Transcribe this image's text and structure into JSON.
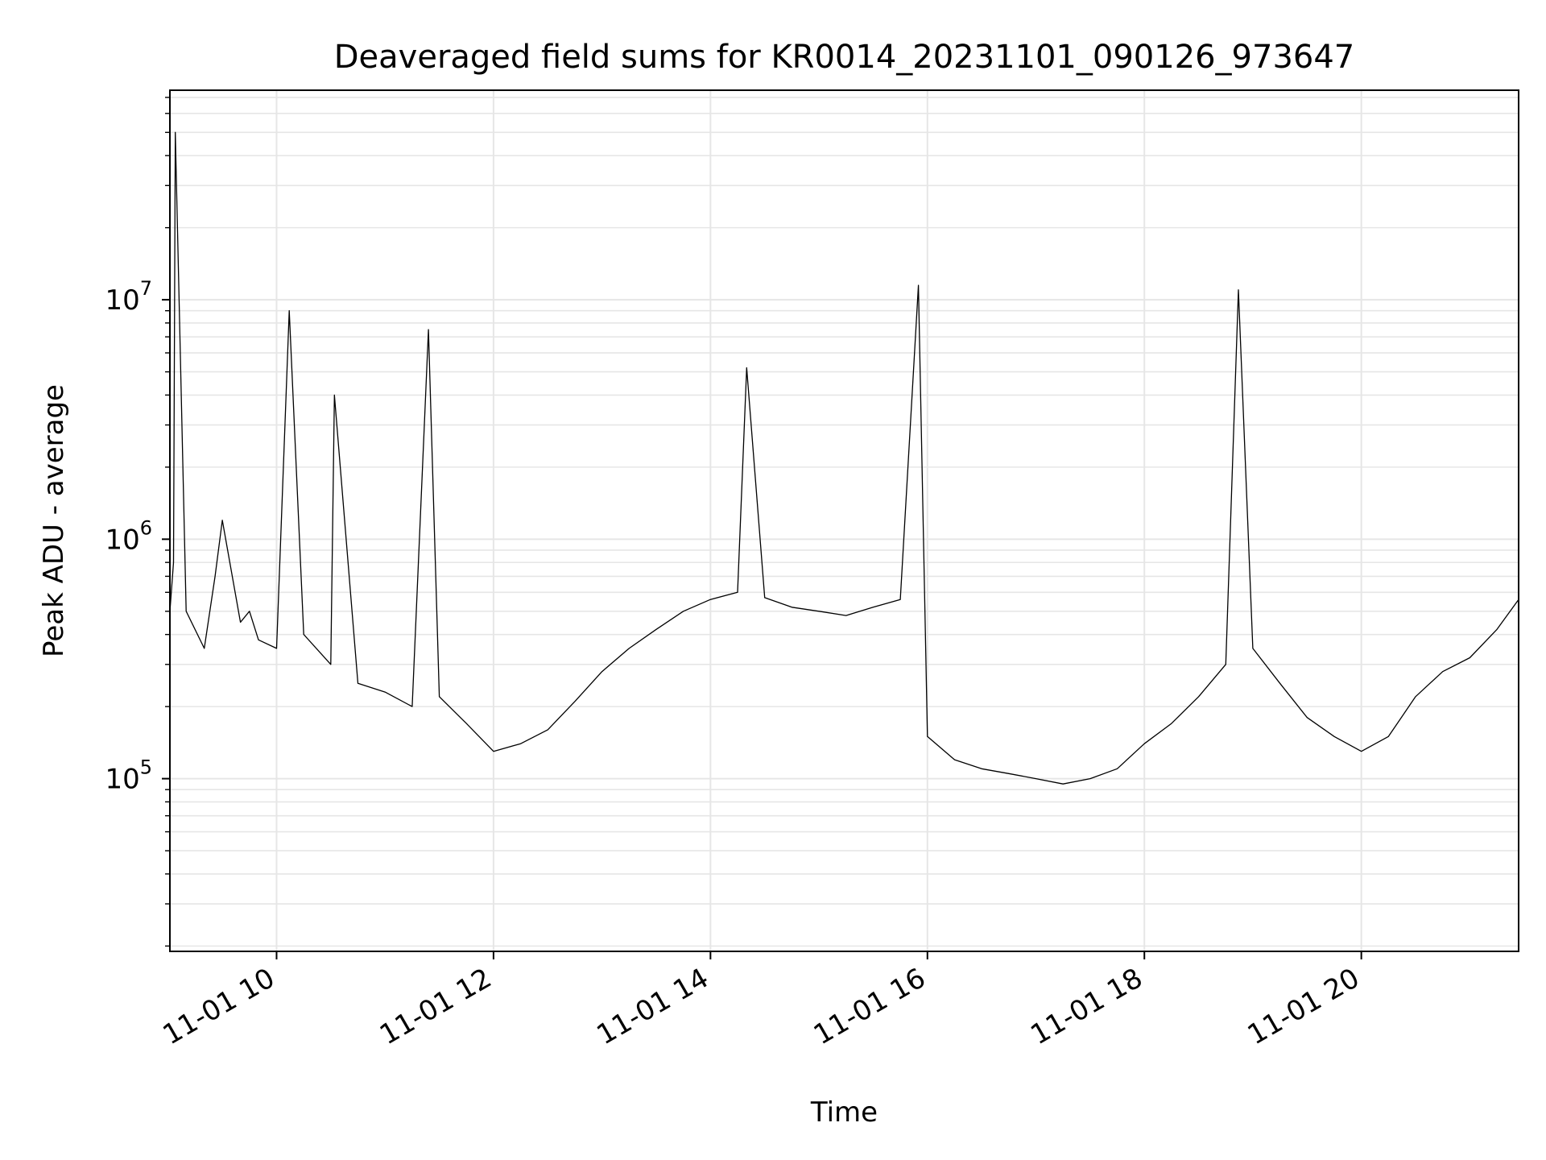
{
  "chart_data": {
    "type": "line",
    "title": "Deaveraged field sums for KR0014_20231101_090126_973647",
    "xlabel": "Time",
    "ylabel": "Peak ADU - average",
    "y_scale": "log",
    "ylim": [
      19000,
      75000000
    ],
    "xlim": [
      "2023-11-01 09:01",
      "2023-11-01 21:27"
    ],
    "x_ticks": [
      "2023-11-01 10:00",
      "2023-11-01 12:00",
      "2023-11-01 14:00",
      "2023-11-01 16:00",
      "2023-11-01 18:00",
      "2023-11-01 20:00"
    ],
    "x_tick_labels": [
      "11-01 10",
      "11-01 12",
      "11-01 14",
      "11-01 16",
      "11-01 18",
      "11-01 20"
    ],
    "y_ticks": [
      100000,
      1000000,
      10000000
    ],
    "y_tick_labels": [
      {
        "base": "10",
        "exp": "5"
      },
      {
        "base": "10",
        "exp": "6"
      },
      {
        "base": "10",
        "exp": "7"
      }
    ],
    "grid": true,
    "line_color": "#000000",
    "grid_color": "#e6e6e6",
    "series": [
      {
        "x": [
          "2023-11-01 09:01",
          "2023-11-01 09:03",
          "2023-11-01 09:04",
          "2023-11-01 09:10",
          "2023-11-01 09:20",
          "2023-11-01 09:26",
          "2023-11-01 09:30",
          "2023-11-01 09:40",
          "2023-11-01 09:45",
          "2023-11-01 09:50",
          "2023-11-01 10:00",
          "2023-11-01 10:07",
          "2023-11-01 10:15",
          "2023-11-01 10:30",
          "2023-11-01 10:32",
          "2023-11-01 10:45",
          "2023-11-01 11:00",
          "2023-11-01 11:15",
          "2023-11-01 11:24",
          "2023-11-01 11:30",
          "2023-11-01 11:45",
          "2023-11-01 12:00",
          "2023-11-01 12:15",
          "2023-11-01 12:30",
          "2023-11-01 12:45",
          "2023-11-01 13:00",
          "2023-11-01 13:15",
          "2023-11-01 13:30",
          "2023-11-01 13:45",
          "2023-11-01 14:00",
          "2023-11-01 14:15",
          "2023-11-01 14:20",
          "2023-11-01 14:30",
          "2023-11-01 14:45",
          "2023-11-01 15:00",
          "2023-11-01 15:15",
          "2023-11-01 15:30",
          "2023-11-01 15:45",
          "2023-11-01 15:55",
          "2023-11-01 16:00",
          "2023-11-01 16:15",
          "2023-11-01 16:30",
          "2023-11-01 16:45",
          "2023-11-01 17:00",
          "2023-11-01 17:15",
          "2023-11-01 17:30",
          "2023-11-01 17:45",
          "2023-11-01 18:00",
          "2023-11-01 18:15",
          "2023-11-01 18:30",
          "2023-11-01 18:45",
          "2023-11-01 18:52",
          "2023-11-01 19:00",
          "2023-11-01 19:15",
          "2023-11-01 19:30",
          "2023-11-01 19:45",
          "2023-11-01 20:00",
          "2023-11-01 20:15",
          "2023-11-01 20:30",
          "2023-11-01 20:45",
          "2023-11-01 21:00",
          "2023-11-01 21:15",
          "2023-11-01 21:27"
        ],
        "y": [
          500000,
          800000,
          50000000,
          500000,
          350000,
          700000,
          1200000,
          450000,
          500000,
          380000,
          350000,
          9000000,
          400000,
          300000,
          4000000,
          250000,
          230000,
          200000,
          7500000,
          220000,
          170000,
          130000,
          140000,
          160000,
          210000,
          280000,
          350000,
          420000,
          500000,
          560000,
          600000,
          5200000,
          570000,
          520000,
          500000,
          480000,
          520000,
          560000,
          11500000,
          150000,
          120000,
          110000,
          105000,
          100000,
          95000,
          100000,
          110000,
          140000,
          170000,
          220000,
          300000,
          11000000,
          350000,
          250000,
          180000,
          150000,
          130000,
          150000,
          220000,
          280000,
          320000,
          420000,
          560000
        ]
      }
    ]
  }
}
